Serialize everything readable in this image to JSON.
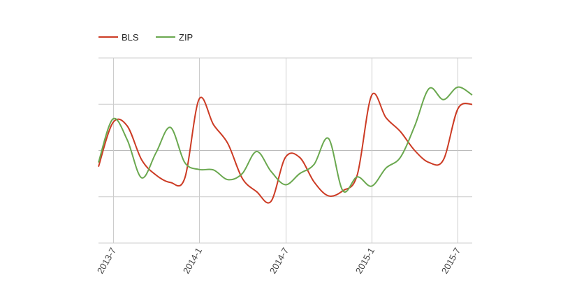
{
  "chart_data": {
    "type": "line",
    "title": "",
    "xlabel": "",
    "ylabel": "",
    "x": [
      "2013-6",
      "2013-7",
      "2013-8",
      "2013-9",
      "2013-10",
      "2013-11",
      "2013-12",
      "2014-1",
      "2014-2",
      "2014-3",
      "2014-4",
      "2014-5",
      "2014-6",
      "2014-7",
      "2014-8",
      "2014-9",
      "2014-10",
      "2014-11",
      "2014-12",
      "2015-1",
      "2015-2",
      "2015-3",
      "2015-4",
      "2015-5",
      "2015-6",
      "2015-7",
      "2015-8"
    ],
    "tick_labels": [
      "2013-7",
      "2014-1",
      "2014-7",
      "2015-1",
      "2015-7"
    ],
    "tick_indices": [
      1,
      7,
      13,
      19,
      25
    ],
    "ylim": [
      -2,
      2
    ],
    "grid": true,
    "legend_position": "top-left",
    "series": [
      {
        "name": "BLS",
        "color": "#cc3b24",
        "values": [
          -0.35,
          0.6,
          0.53,
          -0.2,
          -0.53,
          -0.69,
          -0.6,
          1.11,
          0.56,
          0.15,
          -0.6,
          -0.89,
          -1.1,
          -0.15,
          -0.15,
          -0.68,
          -0.98,
          -0.87,
          -0.53,
          1.19,
          0.71,
          0.41,
          0,
          -0.26,
          -0.2,
          0.9,
          1.0
        ]
      },
      {
        "name": "ZIP",
        "color": "#6aa84f",
        "values": [
          -0.26,
          0.68,
          0.23,
          -0.59,
          -0.05,
          0.5,
          -0.26,
          -0.41,
          -0.42,
          -0.63,
          -0.5,
          -0.02,
          -0.45,
          -0.74,
          -0.5,
          -0.3,
          0.26,
          -0.87,
          -0.57,
          -0.77,
          -0.38,
          -0.15,
          0.53,
          1.34,
          1.1,
          1.37,
          1.2
        ]
      }
    ]
  }
}
